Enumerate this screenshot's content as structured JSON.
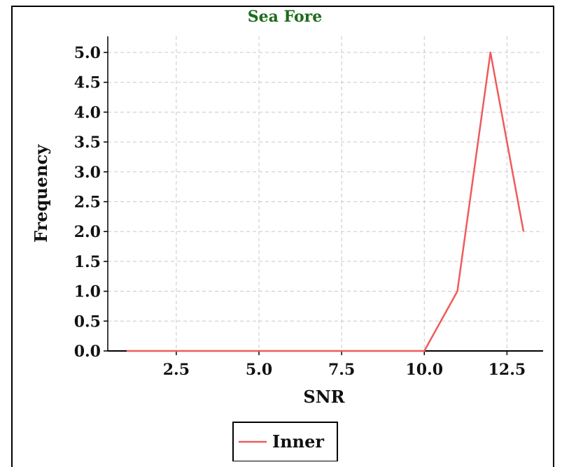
{
  "chart_data": {
    "type": "line",
    "title": "Sea Fore",
    "title_color": "#1e6b1e",
    "xlabel": "SNR",
    "ylabel": "Frequency",
    "xlim": [
      0,
      13.5
    ],
    "ylim": [
      0,
      5.3
    ],
    "xticks": [
      "2.5",
      "5.0",
      "7.5",
      "10.0",
      "12.5"
    ],
    "xtick_values": [
      2.5,
      5.0,
      7.5,
      10.0,
      12.5
    ],
    "yticks": [
      "0.0",
      "0.5",
      "1.0",
      "1.5",
      "2.0",
      "2.5",
      "3.0",
      "3.5",
      "4.0",
      "4.5",
      "5.0"
    ],
    "ytick_values": [
      0,
      0.5,
      1.0,
      1.5,
      2.0,
      2.5,
      3.0,
      3.5,
      4.0,
      4.5,
      5.0
    ],
    "grid": true,
    "legend_position": "bottom-center",
    "series": [
      {
        "name": "Inner",
        "color": "#f05a5a",
        "x": [
          1,
          2,
          3,
          4,
          5,
          6,
          7,
          8,
          9,
          10,
          11,
          12,
          13
        ],
        "y": [
          0,
          0,
          0,
          0,
          0,
          0,
          0,
          0,
          0,
          0,
          1,
          5,
          2
        ]
      }
    ]
  }
}
